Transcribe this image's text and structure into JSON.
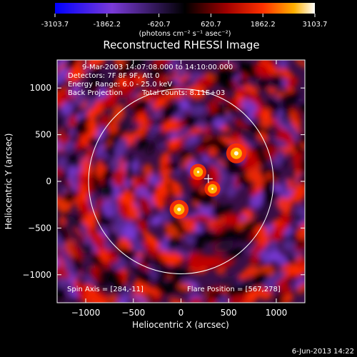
{
  "colorbar": {
    "ticks": [
      "-3103.7",
      "-1862.2",
      "-620.7",
      "620.7",
      "1862.2",
      "3103.7"
    ],
    "units": "(photons cm⁻² s⁻¹ asec⁻²)"
  },
  "chart_data": {
    "type": "heatmap",
    "title": "Reconstructed RHESSI Image",
    "xlabel": "Heliocentric X (arcsec)",
    "ylabel": "Heliocentric Y (arcsec)",
    "xlim": [
      -1300,
      1300
    ],
    "ylim": [
      -1300,
      1300
    ],
    "x_ticks": [
      -1000,
      -500,
      0,
      500,
      1000
    ],
    "y_ticks": [
      -1000,
      -500,
      0,
      500,
      1000
    ],
    "x_tick_labels": [
      "−1000",
      "−500",
      "0",
      "500",
      "1000"
    ],
    "y_tick_labels": [
      "−1000",
      "−500",
      "0",
      "500",
      "1000"
    ],
    "color_scale": {
      "min": -3103.7,
      "max": 3103.7
    },
    "solar_disk": {
      "cx": 0,
      "cy": 0,
      "r": 970
    },
    "flare_marker": {
      "x": 287,
      "y": 28
    },
    "sources": [
      {
        "x": 580,
        "y": 300,
        "value": 3100
      },
      {
        "x": -20,
        "y": -300,
        "value": 2700
      },
      {
        "x": 180,
        "y": 100,
        "value": 1800
      },
      {
        "x": 330,
        "y": -80,
        "value": 1600
      }
    ],
    "annotations": {
      "date_range": "9-Mar-2003 14:07:08.000 to 14:10:00.000",
      "detectors": "Detectors: 7F 8F 9F, Att 0",
      "energy": "Energy Range: 6.0 - 25.0 keV",
      "method": "Back Projection",
      "total_counts": "Total counts: 8.11E+03",
      "spin_axis": "Spin Axis = [284,-11]",
      "flare_position": "Flare Position = [567,278]"
    }
  },
  "footer": {
    "date": "6-Jun-2013 14:22"
  },
  "colors": {
    "background": "#000000",
    "foreground": "#ffffff",
    "colormap": [
      "#0000ff",
      "#8a2be2",
      "#000000",
      "#b00000",
      "#ff2000",
      "#ffb000",
      "#ffffff"
    ]
  }
}
